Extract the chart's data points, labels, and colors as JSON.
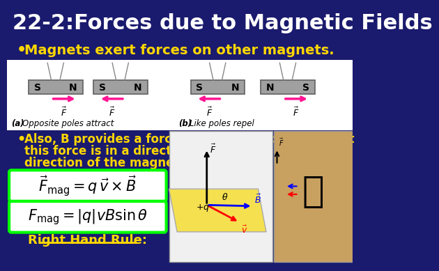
{
  "title": "22-2:Forces due to Magnetic Fields",
  "title_color": "#FFFFFF",
  "title_bg_color": "#1a1a6e",
  "bullet1": "Magnets exert forces on other magnets.",
  "bullet1_color": "#FFD700",
  "bullet2_line1": "Also, B provides a force to a charged particle,  but",
  "bullet2_line2": "this force is in a direction perpendicular to the",
  "bullet2_line3": "direction of the magnetic field.",
  "bullet2_color": "#FFD700",
  "bottom_bg_color": "#1a1a6e",
  "formula1": "$\\vec{F}_{\\mathrm{mag}} = q\\, \\vec{v} \\times \\vec{B}$",
  "formula2": "$F_{\\mathrm{mag}} = |q|vB\\sin\\theta$",
  "formula_bg": "#FFFFFF",
  "formula_border": "#00FF00",
  "right_hand_rule": "Right Hand Rule:",
  "rhr_color": "#FFD700",
  "caption_a": "(a) Opposite poles attract",
  "caption_b": "(b) Like poles repel",
  "magnet_color": "#A0A0A0",
  "arrow_color": "#FF1493"
}
